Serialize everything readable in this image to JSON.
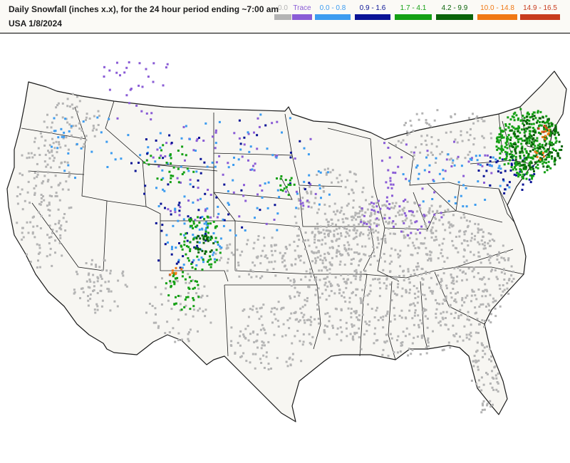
{
  "header": {
    "title": "Daily Snowfall (inches  x.x),  for the 24 hour period ending ~7:00 am",
    "subtitle": "USA 1/8/2024"
  },
  "legend": [
    {
      "label": "0.0",
      "color": "#b4b4b4"
    },
    {
      "label": "Trace",
      "color": "#8a5cd6"
    },
    {
      "label": "0.0 - 0.8",
      "color": "#3c9cf0"
    },
    {
      "label": "0.9 - 1.6",
      "color": "#0a1496"
    },
    {
      "label": "1.7 - 4.1",
      "color": "#14a014"
    },
    {
      "label": "4.2 - 9.9",
      "color": "#0a640a"
    },
    {
      "label": "10.0 - 14.8",
      "color": "#f07814"
    },
    {
      "label": "14.9 - 16.5",
      "color": "#c83c1e"
    }
  ],
  "map_style": {
    "land": "#f7f6f2",
    "borders": "#1a1a1a"
  }
}
